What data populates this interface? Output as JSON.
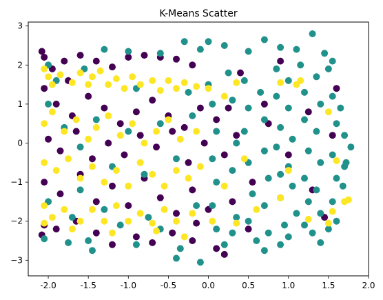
{
  "chart_data": {
    "type": "scatter",
    "title": "K-Means Scatter",
    "xlabel": "",
    "ylabel": "",
    "xlim": [
      -2.25,
      2.0
    ],
    "ylim": [
      -3.4,
      3.1
    ],
    "xticks": [
      "-2.0",
      "-1.5",
      "-1.0",
      "-0.5",
      "0.0",
      "0.5",
      "1.0",
      "1.5",
      "2.0"
    ],
    "yticks": [
      "−3",
      "−2",
      "−1",
      "0",
      "1",
      "2",
      "3"
    ],
    "xtick_values": [
      -2.0,
      -1.5,
      -1.0,
      -0.5,
      0.0,
      0.5,
      1.0,
      1.5,
      2.0
    ],
    "ytick_values": [
      -3,
      -2,
      -1,
      0,
      1,
      2,
      3
    ],
    "grid": false,
    "legend": "none",
    "colors": {
      "cluster_0": "#440154",
      "cluster_1": "#21918c",
      "cluster_2": "#fde725"
    },
    "series": [
      {
        "points": [
          [
            -2.08,
            2.35
          ],
          [
            -2.05,
            2.2
          ],
          [
            -1.95,
            1.9
          ],
          [
            -1.8,
            2.1
          ],
          [
            -1.6,
            2.25
          ],
          [
            -1.4,
            2.1
          ],
          [
            -1.2,
            1.95
          ],
          [
            -1.0,
            2.2
          ],
          [
            -0.8,
            2.25
          ],
          [
            -0.6,
            2.2
          ],
          [
            -0.4,
            2.15
          ],
          [
            -0.2,
            2.0
          ],
          [
            -2.05,
            1.4
          ],
          [
            -1.9,
            1.0
          ],
          [
            -1.7,
            0.7
          ],
          [
            -1.5,
            1.2
          ],
          [
            -1.3,
            0.9
          ],
          [
            -1.1,
            0.5
          ],
          [
            -0.9,
            0.8
          ],
          [
            -0.7,
            1.1
          ],
          [
            -0.5,
            0.7
          ],
          [
            -0.3,
            0.4
          ],
          [
            -0.1,
            0.9
          ],
          [
            0.1,
            0.6
          ],
          [
            0.25,
            0.9
          ],
          [
            -2.0,
            0.1
          ],
          [
            -1.85,
            -0.2
          ],
          [
            -1.65,
            0.3
          ],
          [
            -1.45,
            -0.4
          ],
          [
            -1.25,
            0.0
          ],
          [
            -1.05,
            -0.3
          ],
          [
            -0.85,
            0.2
          ],
          [
            -0.65,
            -0.1
          ],
          [
            -0.45,
            0.3
          ],
          [
            -0.25,
            -0.5
          ],
          [
            -0.05,
            0.0
          ],
          [
            0.2,
            -0.3
          ],
          [
            -2.05,
            -1.0
          ],
          [
            -1.85,
            -1.3
          ],
          [
            -1.6,
            -0.8
          ],
          [
            -1.4,
            -1.5
          ],
          [
            -1.2,
            -1.1
          ],
          [
            -1.0,
            -1.6
          ],
          [
            -0.8,
            -0.9
          ],
          [
            -0.6,
            -1.4
          ],
          [
            -0.4,
            -1.8
          ],
          [
            -0.2,
            -1.2
          ],
          [
            0.0,
            -1.7
          ],
          [
            0.3,
            -1.5
          ],
          [
            -2.05,
            -2.1
          ],
          [
            -2.08,
            -2.35
          ],
          [
            -1.9,
            -2.2
          ],
          [
            -1.65,
            -2.0
          ],
          [
            -1.4,
            -2.3
          ],
          [
            -1.2,
            -2.6
          ],
          [
            -0.9,
            -2.4
          ],
          [
            -0.7,
            -2.55
          ],
          [
            -0.45,
            -2.3
          ],
          [
            -0.2,
            -2.5
          ],
          [
            0.1,
            -2.7
          ],
          [
            0.2,
            -2.85
          ],
          [
            0.7,
            1.0
          ],
          [
            0.75,
            0.5
          ],
          [
            1.0,
            -0.3
          ],
          [
            1.25,
            0.8
          ],
          [
            1.3,
            -1.2
          ],
          [
            1.45,
            -1.9
          ],
          [
            1.55,
            0.2
          ],
          [
            0.5,
            -2.2
          ],
          [
            0.9,
            2.1
          ],
          [
            0.4,
            1.8
          ],
          [
            1.6,
            1.4
          ],
          [
            -1.75,
            1.6
          ],
          [
            -0.15,
            -2.05
          ],
          [
            0.35,
            0.2
          ],
          [
            0.55,
            -1.0
          ]
        ]
      },
      {
        "points": [
          [
            -1.3,
            2.4
          ],
          [
            -1.0,
            2.35
          ],
          [
            -0.6,
            2.3
          ],
          [
            -0.3,
            2.6
          ],
          [
            -0.1,
            2.4
          ],
          [
            0.0,
            2.6
          ],
          [
            0.2,
            2.5
          ],
          [
            0.5,
            2.35
          ],
          [
            0.7,
            2.65
          ],
          [
            0.9,
            2.45
          ],
          [
            1.1,
            2.4
          ],
          [
            1.3,
            2.8
          ],
          [
            1.45,
            2.3
          ],
          [
            1.55,
            2.1
          ],
          [
            -2.0,
            1.0
          ],
          [
            -1.8,
            0.4
          ],
          [
            -1.6,
            -0.1
          ],
          [
            -1.4,
            0.6
          ],
          [
            -1.2,
            -0.6
          ],
          [
            -1.0,
            0.3
          ],
          [
            -0.8,
            -0.8
          ],
          [
            -0.6,
            0.5
          ],
          [
            -0.4,
            -0.4
          ],
          [
            -0.2,
            0.7
          ],
          [
            -2.0,
            -1.5
          ],
          [
            -1.7,
            -1.9
          ],
          [
            -1.5,
            -2.5
          ],
          [
            -1.1,
            -2.1
          ],
          [
            -0.9,
            -2.6
          ],
          [
            -0.6,
            -2.2
          ],
          [
            -0.35,
            -2.7
          ],
          [
            -0.1,
            -3.05
          ],
          [
            -0.4,
            -2.95
          ],
          [
            -1.45,
            -2.75
          ],
          [
            0.0,
            1.5
          ],
          [
            0.05,
            1.0
          ],
          [
            0.1,
            0.3
          ],
          [
            0.05,
            -0.4
          ],
          [
            0.1,
            -1.0
          ],
          [
            0.05,
            -1.6
          ],
          [
            0.1,
            -2.2
          ],
          [
            0.2,
            -2.6
          ],
          [
            0.3,
            -2.3
          ],
          [
            0.25,
            1.8
          ],
          [
            0.3,
            1.1
          ],
          [
            0.35,
            0.0
          ],
          [
            0.3,
            -0.7
          ],
          [
            0.35,
            -1.9
          ],
          [
            0.45,
            1.6
          ],
          [
            0.5,
            0.9
          ],
          [
            0.45,
            0.3
          ],
          [
            0.5,
            -0.5
          ],
          [
            0.55,
            -1.3
          ],
          [
            0.5,
            -2.0
          ],
          [
            0.6,
            -2.5
          ],
          [
            0.65,
            1.3
          ],
          [
            0.7,
            0.6
          ],
          [
            0.7,
            -0.2
          ],
          [
            0.75,
            -0.9
          ],
          [
            0.7,
            -1.6
          ],
          [
            0.75,
            -2.3
          ],
          [
            0.7,
            -2.75
          ],
          [
            0.85,
            1.9
          ],
          [
            0.85,
            1.2
          ],
          [
            0.9,
            0.4
          ],
          [
            0.85,
            -0.1
          ],
          [
            0.9,
            -0.8
          ],
          [
            0.9,
            -1.4
          ],
          [
            0.95,
            -2.1
          ],
          [
            0.9,
            -2.6
          ],
          [
            1.0,
            1.6
          ],
          [
            1.0,
            0.9
          ],
          [
            1.05,
            0.1
          ],
          [
            1.0,
            -0.6
          ],
          [
            1.05,
            -1.1
          ],
          [
            1.1,
            -1.8
          ],
          [
            1.0,
            -2.4
          ],
          [
            1.15,
            2.0
          ],
          [
            1.2,
            1.3
          ],
          [
            1.2,
            0.6
          ],
          [
            1.25,
            -0.2
          ],
          [
            1.2,
            -0.9
          ],
          [
            1.25,
            -1.5
          ],
          [
            1.2,
            -2.1
          ],
          [
            1.35,
            1.7
          ],
          [
            1.4,
            1.0
          ],
          [
            1.35,
            0.3
          ],
          [
            1.4,
            -0.5
          ],
          [
            1.35,
            -1.2
          ],
          [
            1.4,
            -1.8
          ],
          [
            1.3,
            -2.3
          ],
          [
            1.4,
            -2.55
          ],
          [
            1.5,
            1.9
          ],
          [
            1.55,
            1.2
          ],
          [
            1.6,
            0.5
          ],
          [
            1.55,
            -0.3
          ],
          [
            1.6,
            -0.9
          ],
          [
            1.55,
            -1.5
          ],
          [
            1.6,
            -2.0
          ],
          [
            1.65,
            0.9
          ],
          [
            1.7,
            0.2
          ],
          [
            1.7,
            -0.6
          ],
          [
            1.68,
            -1.1
          ],
          [
            1.72,
            -0.5
          ],
          [
            1.78,
            -0.1
          ],
          [
            1.5,
            -2.2
          ],
          [
            -2.0,
            2.0
          ],
          [
            -1.9,
            1.6
          ],
          [
            -1.55,
            1.9
          ],
          [
            -1.6,
            -1.2
          ],
          [
            -1.3,
            -1.7
          ],
          [
            -0.9,
            1.4
          ],
          [
            -0.75,
            -1.9
          ],
          [
            -0.25,
            1.3
          ],
          [
            -0.15,
            -1.6
          ],
          [
            -2.05,
            -2.45
          ],
          [
            -1.75,
            -2.55
          ]
        ]
      },
      {
        "points": [
          [
            -2.05,
            1.9
          ],
          [
            -2.0,
            1.7
          ],
          [
            -1.95,
            1.5
          ],
          [
            -1.85,
            1.75
          ],
          [
            -1.7,
            1.55
          ],
          [
            -1.6,
            1.8
          ],
          [
            -1.5,
            1.5
          ],
          [
            -1.45,
            1.7
          ],
          [
            -1.35,
            1.85
          ],
          [
            -1.25,
            1.5
          ],
          [
            -1.15,
            1.65
          ],
          [
            -1.05,
            1.4
          ],
          [
            -0.95,
            1.7
          ],
          [
            -0.85,
            1.5
          ],
          [
            -0.7,
            1.6
          ],
          [
            -0.6,
            1.35
          ],
          [
            -0.5,
            1.6
          ],
          [
            -0.4,
            1.4
          ],
          [
            -0.3,
            1.55
          ],
          [
            -0.15,
            1.45
          ],
          [
            0.0,
            1.4
          ],
          [
            -2.05,
            0.5
          ],
          [
            -1.95,
            0.8
          ],
          [
            -1.8,
            0.3
          ],
          [
            -1.65,
            0.6
          ],
          [
            -1.5,
            0.1
          ],
          [
            -1.4,
            0.4
          ],
          [
            -1.25,
            0.7
          ],
          [
            -1.1,
            0.2
          ],
          [
            -0.95,
            0.5
          ],
          [
            -0.8,
            0.0
          ],
          [
            -0.65,
            0.3
          ],
          [
            -0.5,
            0.6
          ],
          [
            -0.35,
            0.1
          ],
          [
            -0.15,
            0.3
          ],
          [
            -2.05,
            -0.5
          ],
          [
            -1.9,
            -0.7
          ],
          [
            -1.75,
            -0.4
          ],
          [
            -1.6,
            -0.9
          ],
          [
            -1.45,
            -0.6
          ],
          [
            -1.3,
            -1.0
          ],
          [
            -1.15,
            -0.7
          ],
          [
            -1.0,
            -1.1
          ],
          [
            -0.85,
            -0.5
          ],
          [
            -0.7,
            -0.8
          ],
          [
            -0.55,
            -1.1
          ],
          [
            -0.4,
            -0.7
          ],
          [
            -0.25,
            -0.9
          ],
          [
            -0.1,
            -0.6
          ],
          [
            -2.05,
            -1.6
          ],
          [
            -1.95,
            -1.9
          ],
          [
            -1.8,
            -1.7
          ],
          [
            -1.6,
            -2.0
          ],
          [
            -1.45,
            -1.7
          ],
          [
            -1.3,
            -2.0
          ],
          [
            -1.15,
            -1.6
          ],
          [
            -1.0,
            -2.0
          ],
          [
            -0.85,
            -1.8
          ],
          [
            -0.7,
            -2.05
          ],
          [
            -0.55,
            -1.7
          ],
          [
            -0.4,
            -2.0
          ],
          [
            -0.2,
            -1.8
          ],
          [
            0.05,
            -2.0
          ],
          [
            0.35,
            -2.05
          ],
          [
            -2.05,
            -2.05
          ],
          [
            -1.7,
            -2.2
          ],
          [
            -1.2,
            -2.3
          ],
          [
            -0.65,
            -2.25
          ],
          [
            -0.3,
            -2.4
          ],
          [
            0.2,
            1.2
          ],
          [
            0.35,
            1.55
          ],
          [
            0.9,
            1.55
          ],
          [
            1.1,
            1.5
          ],
          [
            1.15,
            1.6
          ],
          [
            1.0,
            -0.7
          ],
          [
            0.9,
            -1.4
          ],
          [
            0.6,
            -1.7
          ],
          [
            1.25,
            -1.95
          ],
          [
            1.5,
            -2.05
          ],
          [
            1.55,
            -1.75
          ],
          [
            1.7,
            -1.5
          ],
          [
            1.75,
            -1.45
          ],
          [
            1.6,
            -0.45
          ],
          [
            1.5,
            0.8
          ],
          [
            0.45,
            -0.4
          ],
          [
            0.2,
            -1.1
          ]
        ]
      }
    ]
  }
}
